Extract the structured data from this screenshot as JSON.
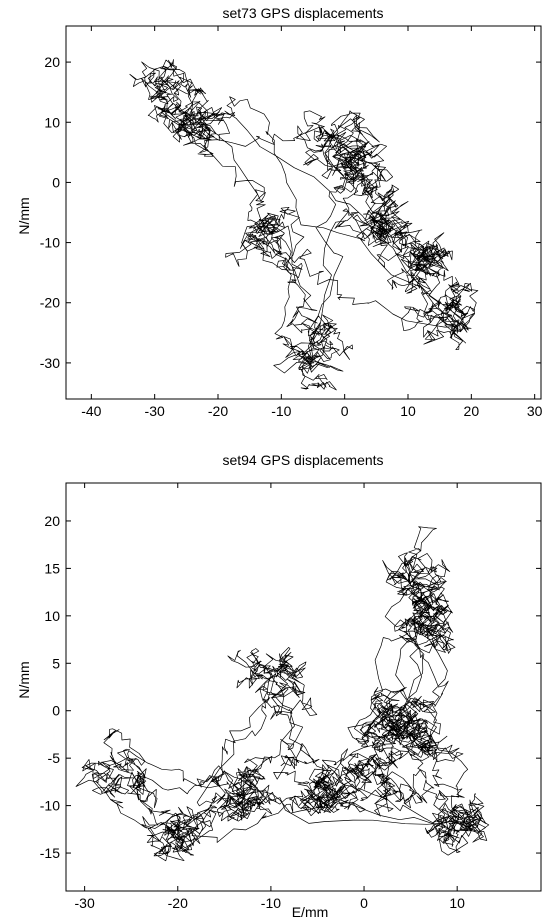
{
  "chart_data": [
    {
      "type": "line",
      "title": "set73 GPS displacements",
      "xlabel": "",
      "ylabel": "N/mm",
      "xlim": [
        -44,
        31
      ],
      "ylim": [
        -36,
        26
      ],
      "xticks": [
        -40,
        -30,
        -20,
        -10,
        0,
        10,
        20,
        30
      ],
      "yticks": [
        -30,
        -20,
        -10,
        0,
        10,
        20
      ],
      "grid": false,
      "line_color": "#000000",
      "trajectory_centers": [
        [
          -28,
          16
        ],
        [
          -25,
          9
        ],
        [
          -12,
          -9
        ],
        [
          -5,
          -28
        ],
        [
          0,
          8
        ],
        [
          3,
          2
        ],
        [
          6,
          -7
        ],
        [
          12,
          -12
        ],
        [
          16,
          -22
        ]
      ]
    },
    {
      "type": "line",
      "title": "set94 GPS displacements",
      "xlabel": "E/mm",
      "ylabel": "N/mm",
      "xlim": [
        -32,
        19
      ],
      "ylim": [
        -19,
        24
      ],
      "xticks": [
        -30,
        -20,
        -10,
        0,
        10
      ],
      "yticks": [
        -15,
        -10,
        -5,
        0,
        5,
        10,
        15,
        20
      ],
      "grid": false,
      "line_color": "#000000",
      "trajectory_centers": [
        [
          -27,
          -6
        ],
        [
          -20,
          -13
        ],
        [
          -13,
          -8
        ],
        [
          -9,
          3
        ],
        [
          -4,
          -9
        ],
        [
          0,
          -7
        ],
        [
          3,
          0
        ],
        [
          6,
          14
        ],
        [
          7,
          8
        ],
        [
          6,
          -3
        ],
        [
          10,
          -12
        ]
      ]
    }
  ]
}
